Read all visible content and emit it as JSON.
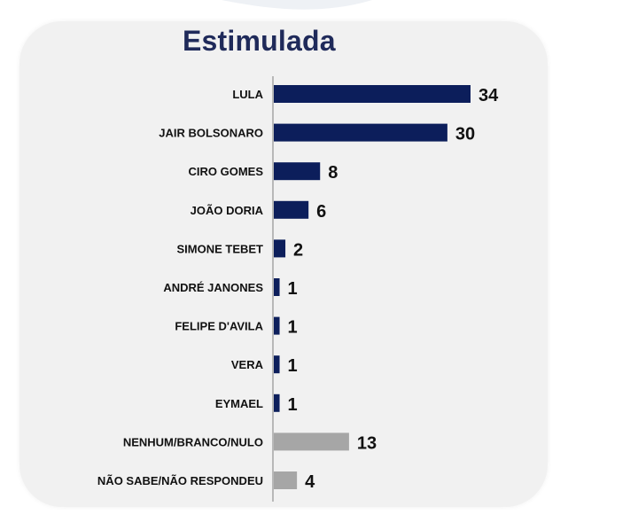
{
  "chart_data": {
    "type": "bar",
    "orientation": "horizontal",
    "title": "Estimulada",
    "categories": [
      "LULA",
      "JAIR BOLSONARO",
      "CIRO GOMES",
      "JOÃO DORIA",
      "SIMONE TEBET",
      "ANDRÉ JANONES",
      "FELIPE D'AVILA",
      "VERA",
      "EYMAEL",
      "NENHUM/BRANCO/NULO",
      "NÃO SABE/NÃO RESPONDEU"
    ],
    "values": [
      34,
      30,
      8,
      6,
      2,
      1,
      1,
      1,
      1,
      13,
      4
    ],
    "value_labels": [
      "34",
      "30",
      "8",
      "6",
      "2",
      "1",
      "1",
      "1",
      "1",
      "13",
      "4"
    ],
    "bar_colors": [
      "#0c1e5b",
      "#0c1e5b",
      "#0c1e5b",
      "#0c1e5b",
      "#0c1e5b",
      "#0c1e5b",
      "#0c1e5b",
      "#0c1e5b",
      "#0c1e5b",
      "#a6a6a6",
      "#a6a6a6"
    ],
    "xlim": [
      0,
      34
    ],
    "grid": false,
    "legend": "none"
  },
  "colors": {
    "title": "#1f2a5a",
    "card_background": "#f1f1f1",
    "axis": "#7f7f7f"
  }
}
